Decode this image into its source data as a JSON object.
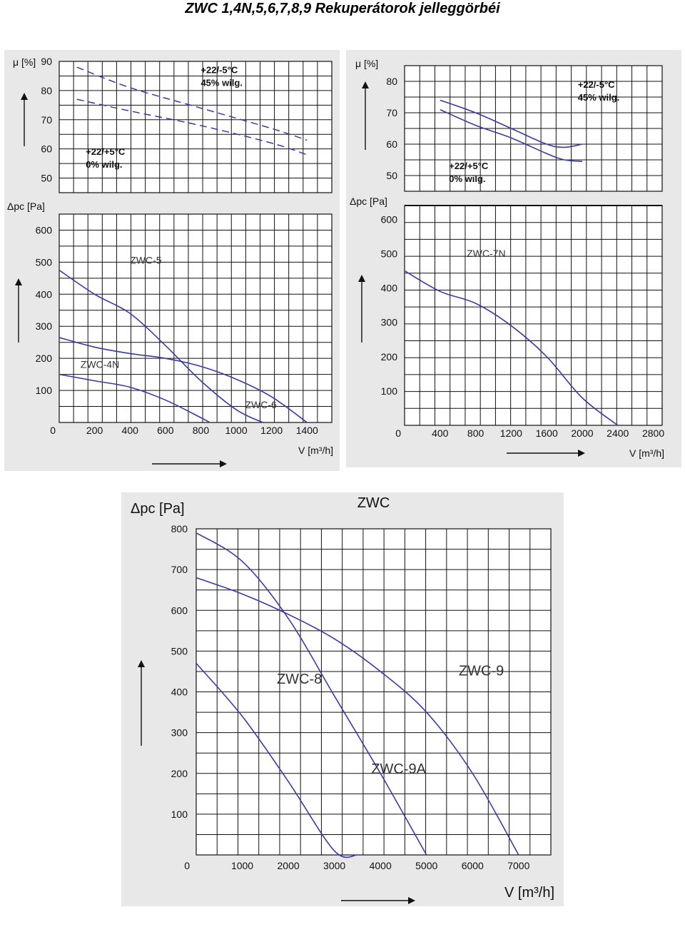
{
  "page": {
    "title": "ZWC 1,4N,5,6,7,8,9 Rekuperátorok jelleggörbéi"
  },
  "colors": {
    "curve": "#3a3aa8",
    "grid": "#111111",
    "panel": "#e8e8e8"
  },
  "chart_data": [
    {
      "id": "left",
      "type": "line",
      "title": "",
      "efficiency": {
        "ylabel": "μ [%]",
        "yticks": [
          90,
          80,
          70,
          60,
          50
        ],
        "ylim": [
          45,
          90
        ],
        "series": [
          {
            "name": "+22/-5°C 45% wilg.",
            "dashed": true,
            "x": [
              100,
              400,
              800,
              1200,
              1400
            ],
            "values": [
              88,
              81,
              74,
              67,
              63
            ]
          },
          {
            "name": "+22/+5°C 0% wilg.",
            "dashed": true,
            "x": [
              100,
              400,
              800,
              1200,
              1400
            ],
            "values": [
              77,
              73,
              68,
              62,
              58
            ]
          }
        ],
        "annotations": [
          {
            "lines": [
              "+22/-5°C",
              "45% wilg."
            ],
            "x": 800,
            "y": 86
          },
          {
            "lines": [
              "+22/+5°C",
              "0% wilg."
            ],
            "x": 150,
            "y": 58
          }
        ]
      },
      "pressure": {
        "ylabel": "Δpc [Pa]",
        "yticks": [
          600,
          500,
          400,
          300,
          200,
          100,
          0
        ],
        "ylim": [
          0,
          650
        ],
        "series": [
          {
            "name": "ZWC-5",
            "x": [
              0,
              200,
              400,
              600,
              800,
              1000,
              1150
            ],
            "values": [
              475,
              400,
              340,
              240,
              130,
              40,
              0
            ]
          },
          {
            "name": "ZWC-4N",
            "x": [
              0,
              200,
              400,
              600,
              800,
              850
            ],
            "values": [
              150,
              130,
              110,
              70,
              15,
              0
            ]
          },
          {
            "name": "ZWC-6",
            "x": [
              0,
              200,
              400,
              600,
              800,
              1000,
              1200,
              1400
            ],
            "values": [
              265,
              235,
              215,
              200,
              175,
              135,
              80,
              0
            ]
          }
        ],
        "labels": [
          {
            "text": "ZWC-5",
            "x": 400,
            "y": 495
          },
          {
            "text": "ZWC-4N",
            "x": 120,
            "y": 170
          },
          {
            "text": "ZWC-6",
            "x": 1050,
            "y": 45
          }
        ]
      },
      "xlabel": "V [m³/h]",
      "xticks": [
        0,
        200,
        400,
        600,
        800,
        1000,
        1200,
        1400
      ]
    },
    {
      "id": "right",
      "type": "line",
      "title": "",
      "efficiency": {
        "ylabel": "μ [%]",
        "yticks": [
          80,
          70,
          60,
          50
        ],
        "ylim": [
          45,
          85
        ],
        "series": [
          {
            "name": "+22/-5°C 45% wilg.",
            "dashed": false,
            "x": [
              400,
              800,
              1200,
              1600,
              1800,
              2000
            ],
            "values": [
              74,
              70,
              65,
              60,
              59,
              60
            ]
          },
          {
            "name": "+22/+5°C 0% wilg.",
            "dashed": false,
            "x": [
              400,
              800,
              1200,
              1600,
              1800,
              2000
            ],
            "values": [
              71,
              66,
              62,
              57,
              55,
              54.5
            ]
          }
        ],
        "annotations": [
          {
            "lines": [
              "+22/-5°C",
              "45% wilg."
            ],
            "x": 1950,
            "y": 78
          },
          {
            "lines": [
              "+22/+5°C",
              "0% wilg."
            ],
            "x": 500,
            "y": 52
          }
        ]
      },
      "pressure": {
        "ylabel": "Δpc [Pa]",
        "yticks": [
          600,
          500,
          400,
          300,
          200,
          100,
          0
        ],
        "ylim": [
          0,
          640
        ],
        "series": [
          {
            "name": "ZWC-7N",
            "x": [
              0,
              400,
              800,
              1200,
              1600,
              2000,
              2400
            ],
            "values": [
              450,
              390,
              355,
              290,
              200,
              80,
              0
            ]
          }
        ],
        "labels": [
          {
            "text": "ZWC-7N",
            "x": 700,
            "y": 490
          }
        ]
      },
      "xlabel": "V [m³/h]",
      "xticks": [
        0,
        400,
        800,
        1200,
        1600,
        2000,
        2400,
        2800
      ]
    },
    {
      "id": "bottom",
      "type": "line",
      "title": "ZWC",
      "pressure": {
        "ylabel": "Δpc [Pa]",
        "yticks": [
          800,
          700,
          600,
          500,
          400,
          300,
          200,
          100,
          0
        ],
        "ylim": [
          0,
          800
        ],
        "series": [
          {
            "name": "ZWC-8",
            "x": [
              0,
              1000,
              2000,
              3000,
              3500
            ],
            "values": [
              470,
              340,
              180,
              10,
              0
            ]
          },
          {
            "name": "ZWC-9A",
            "x": [
              0,
              1000,
              2000,
              3000,
              4000,
              5000
            ],
            "values": [
              790,
              720,
              580,
              390,
              200,
              0
            ]
          },
          {
            "name": "ZWC-9",
            "x": [
              0,
              1000,
              2000,
              3000,
              4000,
              5000,
              6000,
              7000
            ],
            "values": [
              680,
              640,
              590,
              530,
              450,
              350,
              200,
              0
            ]
          }
        ],
        "labels": [
          {
            "text": "ZWC-8",
            "x": 1750,
            "y": 420
          },
          {
            "text": "ZWC-9A",
            "x": 3800,
            "y": 200
          },
          {
            "text": "ZWC-9",
            "x": 5700,
            "y": 440
          }
        ]
      },
      "xlabel": "V [m³/h]",
      "xticks": [
        0,
        1000,
        2000,
        3000,
        4000,
        5000,
        6000,
        7000
      ]
    }
  ]
}
